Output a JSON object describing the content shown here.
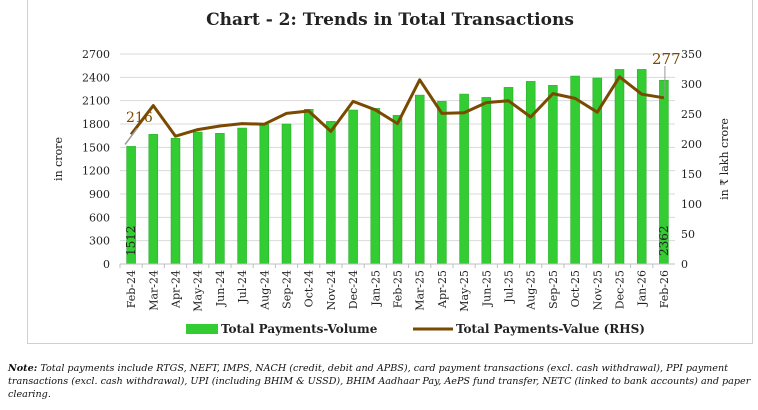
{
  "chart_data": {
    "type": "bar+line",
    "title": "Chart - 2: Trends in Total Transactions",
    "ylabel": "in crore",
    "y2label": "in ₹ lakh crore",
    "ylim": [
      0,
      2700
    ],
    "yticks": [
      0,
      300,
      600,
      900,
      1200,
      1500,
      1800,
      2100,
      2400,
      2700
    ],
    "y2lim": [
      0,
      350
    ],
    "y2ticks": [
      0,
      50,
      100,
      150,
      200,
      250,
      300,
      350
    ],
    "grid": true,
    "legend_placement": "bottom",
    "categories": [
      "Feb-24",
      "Mar-24",
      "Apr-24",
      "May-24",
      "Jun-24",
      "Jul-24",
      "Aug-24",
      "Sep-24",
      "Oct-24",
      "Nov-24",
      "Dec-24",
      "Jan-25",
      "Feb-25",
      "Mar-25",
      "Apr-25",
      "May-25",
      "Jun-25",
      "Jul-25",
      "Aug-25",
      "Sep-25",
      "Oct-25",
      "Nov-25",
      "Dec-25",
      "Jan-26",
      "Feb-26"
    ],
    "series": [
      {
        "name": "Total Payments-Volume",
        "type": "bar",
        "axis": "left",
        "color": "#33cc33",
        "values": [
          1512,
          1667,
          1616,
          1697,
          1680,
          1748,
          1796,
          1800,
          1989,
          1834,
          1980,
          2001,
          1911,
          2172,
          2091,
          2185,
          2142,
          2271,
          2348,
          2297,
          2417,
          2391,
          2502,
          2502,
          2362
        ]
      },
      {
        "name": "Total Payments-Value (RHS)",
        "type": "line",
        "axis": "right",
        "color": "#7a4a00",
        "values": [
          216,
          264,
          213,
          224,
          230,
          234,
          233,
          251,
          255,
          221,
          271,
          257,
          234,
          307,
          251,
          252,
          269,
          272,
          245,
          284,
          276,
          253,
          312,
          283,
          277
        ]
      }
    ],
    "data_labels": {
      "first_bar": "1512",
      "last_bar": "2362",
      "first_line": "216",
      "last_line": "277"
    }
  },
  "note": {
    "label": "Note:",
    "text": "Total payments include RTGS, NEFT, IMPS, NACH (credit, debit and APBS), card payment transactions (excl. cash withdrawal), PPI payment transactions (excl. cash withdrawal), UPI (including BHIM & USSD), BHIM Aadhaar Pay, AePS fund transfer, NETC (linked to bank accounts) and paper clearing."
  }
}
